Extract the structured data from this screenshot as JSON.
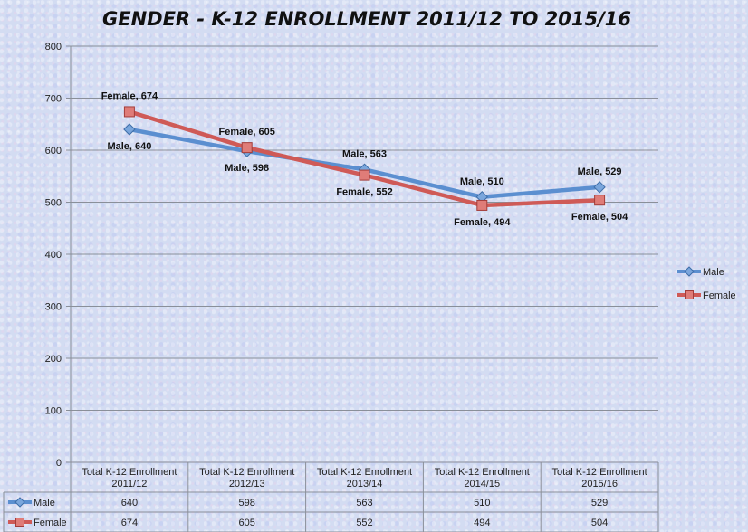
{
  "chart_data": {
    "type": "line",
    "title": "GENDER - K-12 ENROLLMENT 2011/12 TO 2015/16",
    "categories": [
      [
        "Total K-12 Enrollment",
        "2011/12"
      ],
      [
        "Total K-12 Enrollment",
        "2012/13"
      ],
      [
        "Total K-12 Enrollment",
        "2013/14"
      ],
      [
        "Total K-12 Enrollment",
        "2014/15"
      ],
      [
        "Total K-12 Enrollment",
        "2015/16"
      ]
    ],
    "series": [
      {
        "name": "Male",
        "color": "#5b8fd0",
        "marker": "diamond",
        "values": [
          640,
          598,
          563,
          510,
          529
        ],
        "data_labels": [
          "Male, 640",
          "Male, 598",
          "Male, 563",
          "Male, 510",
          "Male, 529"
        ]
      },
      {
        "name": "Female",
        "color": "#cf5a57",
        "marker": "square",
        "values": [
          674,
          605,
          552,
          494,
          504
        ],
        "data_labels": [
          "Female, 674",
          "Female, 605",
          "Female, 552",
          "Female, 494",
          "Female, 504"
        ]
      }
    ],
    "ylim": [
      0,
      800
    ],
    "yticks": [
      "0",
      "100",
      "200",
      "300",
      "400",
      "500",
      "600",
      "700",
      "800"
    ],
    "grid": true,
    "legend_position": "right",
    "data_table": {
      "rows": [
        {
          "name": "Male",
          "cells": [
            "640",
            "598",
            "563",
            "510",
            "529"
          ]
        },
        {
          "name": "Female",
          "cells": [
            "674",
            "605",
            "552",
            "494",
            "504"
          ]
        }
      ]
    }
  }
}
